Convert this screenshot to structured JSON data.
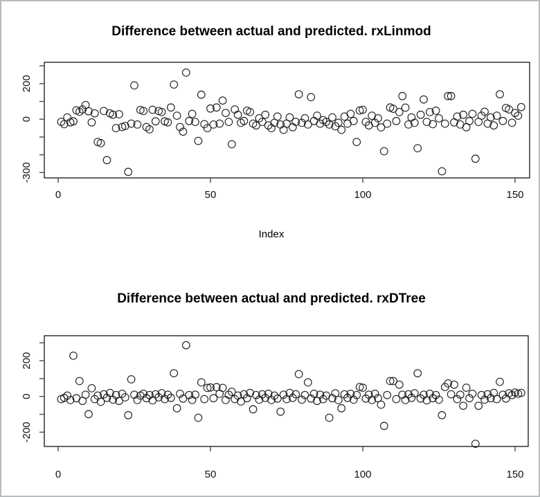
{
  "window": {
    "background": "#ffffff",
    "border_color": "#b9bcbe",
    "point_color": "#212121",
    "axis_color": "#000000"
  },
  "chart_data": [
    {
      "type": "scatter",
      "title": "Difference between actual and predicted. rxLinmod",
      "xlabel": "Index",
      "ylabel": "",
      "marker": "open-circle",
      "grid": false,
      "x_rule": "index 1..152",
      "xlim": [
        -5,
        158
      ],
      "ylim": [
        -330,
        320
      ],
      "x_ticks": [
        0,
        50,
        100,
        150
      ],
      "x_tick_labels": [
        "0",
        "50",
        "100",
        "150"
      ],
      "y_ticks": [
        300,
        200,
        100,
        0,
        -100,
        -200,
        -300
      ],
      "y_tick_labels": [
        "",
        "200",
        "",
        "0",
        "",
        "",
        "-300"
      ],
      "values": [
        -15,
        -28,
        10,
        -18,
        -12,
        50,
        42,
        55,
        80,
        45,
        -18,
        33,
        -128,
        -135,
        46,
        -230,
        33,
        25,
        -50,
        28,
        -44,
        -38,
        -296,
        -25,
        190,
        -30,
        52,
        46,
        -44,
        -57,
        53,
        -12,
        46,
        40,
        -12,
        -18,
        66,
        195,
        20,
        -44,
        -70,
        262,
        -10,
        30,
        -15,
        -122,
        138,
        -28,
        -50,
        60,
        -30,
        66,
        -25,
        105,
        35,
        -15,
        -141,
        55,
        25,
        -20,
        -10,
        48,
        40,
        -25,
        -35,
        5,
        -15,
        25,
        -35,
        -50,
        -20,
        15,
        -30,
        -60,
        -25,
        10,
        -45,
        -15,
        140,
        -20,
        5,
        -30,
        124,
        -10,
        20,
        -25,
        -5,
        -15,
        -30,
        10,
        -40,
        -20,
        -60,
        15,
        -25,
        30,
        -10,
        -128,
        49,
        53,
        -15,
        -35,
        20,
        -20,
        5,
        -46,
        -180,
        -25,
        66,
        59,
        -10,
        40,
        130,
        65,
        -30,
        10,
        -20,
        -163,
        25,
        111,
        -15,
        40,
        -28,
        48,
        5,
        -293,
        -25,
        130,
        130,
        -18,
        15,
        -30,
        25,
        -45,
        -10,
        30,
        -222,
        -15,
        20,
        42,
        -25,
        10,
        -35,
        20,
        140,
        -10,
        63,
        55,
        -20,
        35,
        20,
        68
      ]
    },
    {
      "type": "scatter",
      "title": "Difference between actual and predicted. rxDTree",
      "xlabel": "",
      "ylabel": "",
      "marker": "open-circle",
      "grid": false,
      "x_rule": "index 1..152",
      "xlim": [
        -5,
        158
      ],
      "ylim": [
        -280,
        340
      ],
      "x_ticks": [
        0,
        50,
        100,
        150
      ],
      "x_tick_labels": [
        "0",
        "50",
        "100",
        "150"
      ],
      "y_ticks": [
        300,
        200,
        100,
        0,
        -100,
        -200
      ],
      "y_tick_labels": [
        "",
        "200",
        "",
        "0",
        "",
        "-200"
      ],
      "values": [
        -15,
        -8,
        5,
        -20,
        228,
        -10,
        86,
        -25,
        10,
        -99,
        46,
        -15,
        5,
        -30,
        12,
        -8,
        20,
        -18,
        8,
        -25,
        15,
        -5,
        -105,
        96,
        10,
        -20,
        5,
        15,
        -10,
        8,
        -22,
        12,
        -5,
        18,
        -15,
        10,
        -8,
        130,
        -66,
        15,
        -12,
        287,
        8,
        -20,
        10,
        -119,
        79,
        -15,
        48,
        50,
        -10,
        52,
        15,
        48,
        -20,
        10,
        26,
        -15,
        5,
        -28,
        12,
        -10,
        20,
        -72,
        8,
        -18,
        12,
        -8,
        15,
        -20,
        5,
        -12,
        -85,
        10,
        -15,
        20,
        -8,
        12,
        125,
        -18,
        8,
        79,
        -12,
        15,
        -25,
        10,
        -15,
        5,
        -119,
        -10,
        18,
        -20,
        -66,
        12,
        -8,
        15,
        -18,
        8,
        53,
        49,
        -12,
        10,
        -20,
        15,
        -10,
        -46,
        -165,
        8,
        86,
        86,
        -15,
        66,
        10,
        -20,
        12,
        -8,
        18,
        130,
        -12,
        10,
        -22,
        15,
        -10,
        8,
        -18,
        -105,
        53,
        73,
        12,
        66,
        -15,
        10,
        -52,
        49,
        -10,
        15,
        -265,
        -52,
        8,
        -18,
        12,
        -10,
        20,
        -15,
        82,
        10,
        -12,
        18,
        8,
        22,
        15,
        20
      ]
    }
  ]
}
